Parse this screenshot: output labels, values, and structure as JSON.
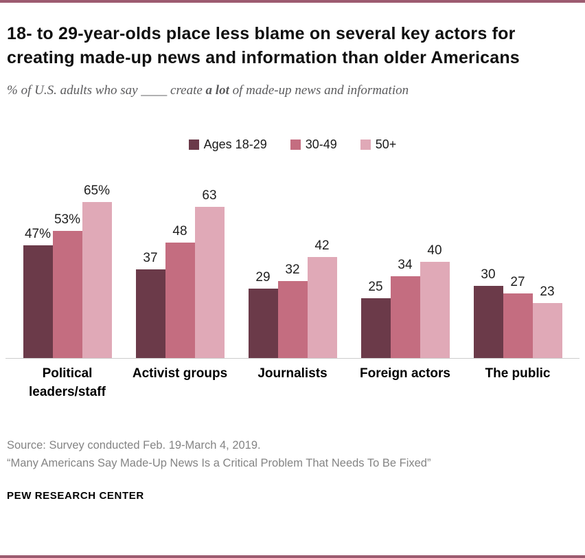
{
  "title": "18- to 29-year-olds place less blame on several key actors for creating made-up news and information than older Americans",
  "subtitle": {
    "prefix": "% of U.S. adults who say ____ create ",
    "bold": "a lot",
    "suffix": " of made-up news and information"
  },
  "chart_data": {
    "type": "bar",
    "categories": [
      "Political leaders/staff",
      "Activist groups",
      "Journalists",
      "Foreign actors",
      "The public"
    ],
    "series": [
      {
        "name": "Ages 18-29",
        "color": "#6b3a49",
        "values": [
          47,
          37,
          29,
          25,
          30
        ],
        "labels": [
          "47%",
          "37",
          "29",
          "25",
          "30"
        ]
      },
      {
        "name": "30-49",
        "color": "#c46d80",
        "values": [
          53,
          48,
          32,
          34,
          27
        ],
        "labels": [
          "53%",
          "48",
          "32",
          "34",
          "27"
        ]
      },
      {
        "name": "50+",
        "color": "#e0a9b7",
        "values": [
          65,
          63,
          42,
          40,
          23
        ],
        "labels": [
          "65%",
          "63",
          "42",
          "40",
          "23"
        ]
      }
    ],
    "ylim": [
      0,
      70
    ],
    "grid": false,
    "legend_position": "top",
    "xlabel": "",
    "ylabel": ""
  },
  "source": {
    "line1": "Source: Survey conducted Feb. 19-March 4, 2019.",
    "line2": "“Many Americans Say Made-Up News Is a Critical Problem That Needs To Be Fixed”"
  },
  "footer": "PEW RESEARCH CENTER",
  "colors": {
    "accent_rule": "#9d5b70",
    "axis_line": "#cccccc"
  }
}
